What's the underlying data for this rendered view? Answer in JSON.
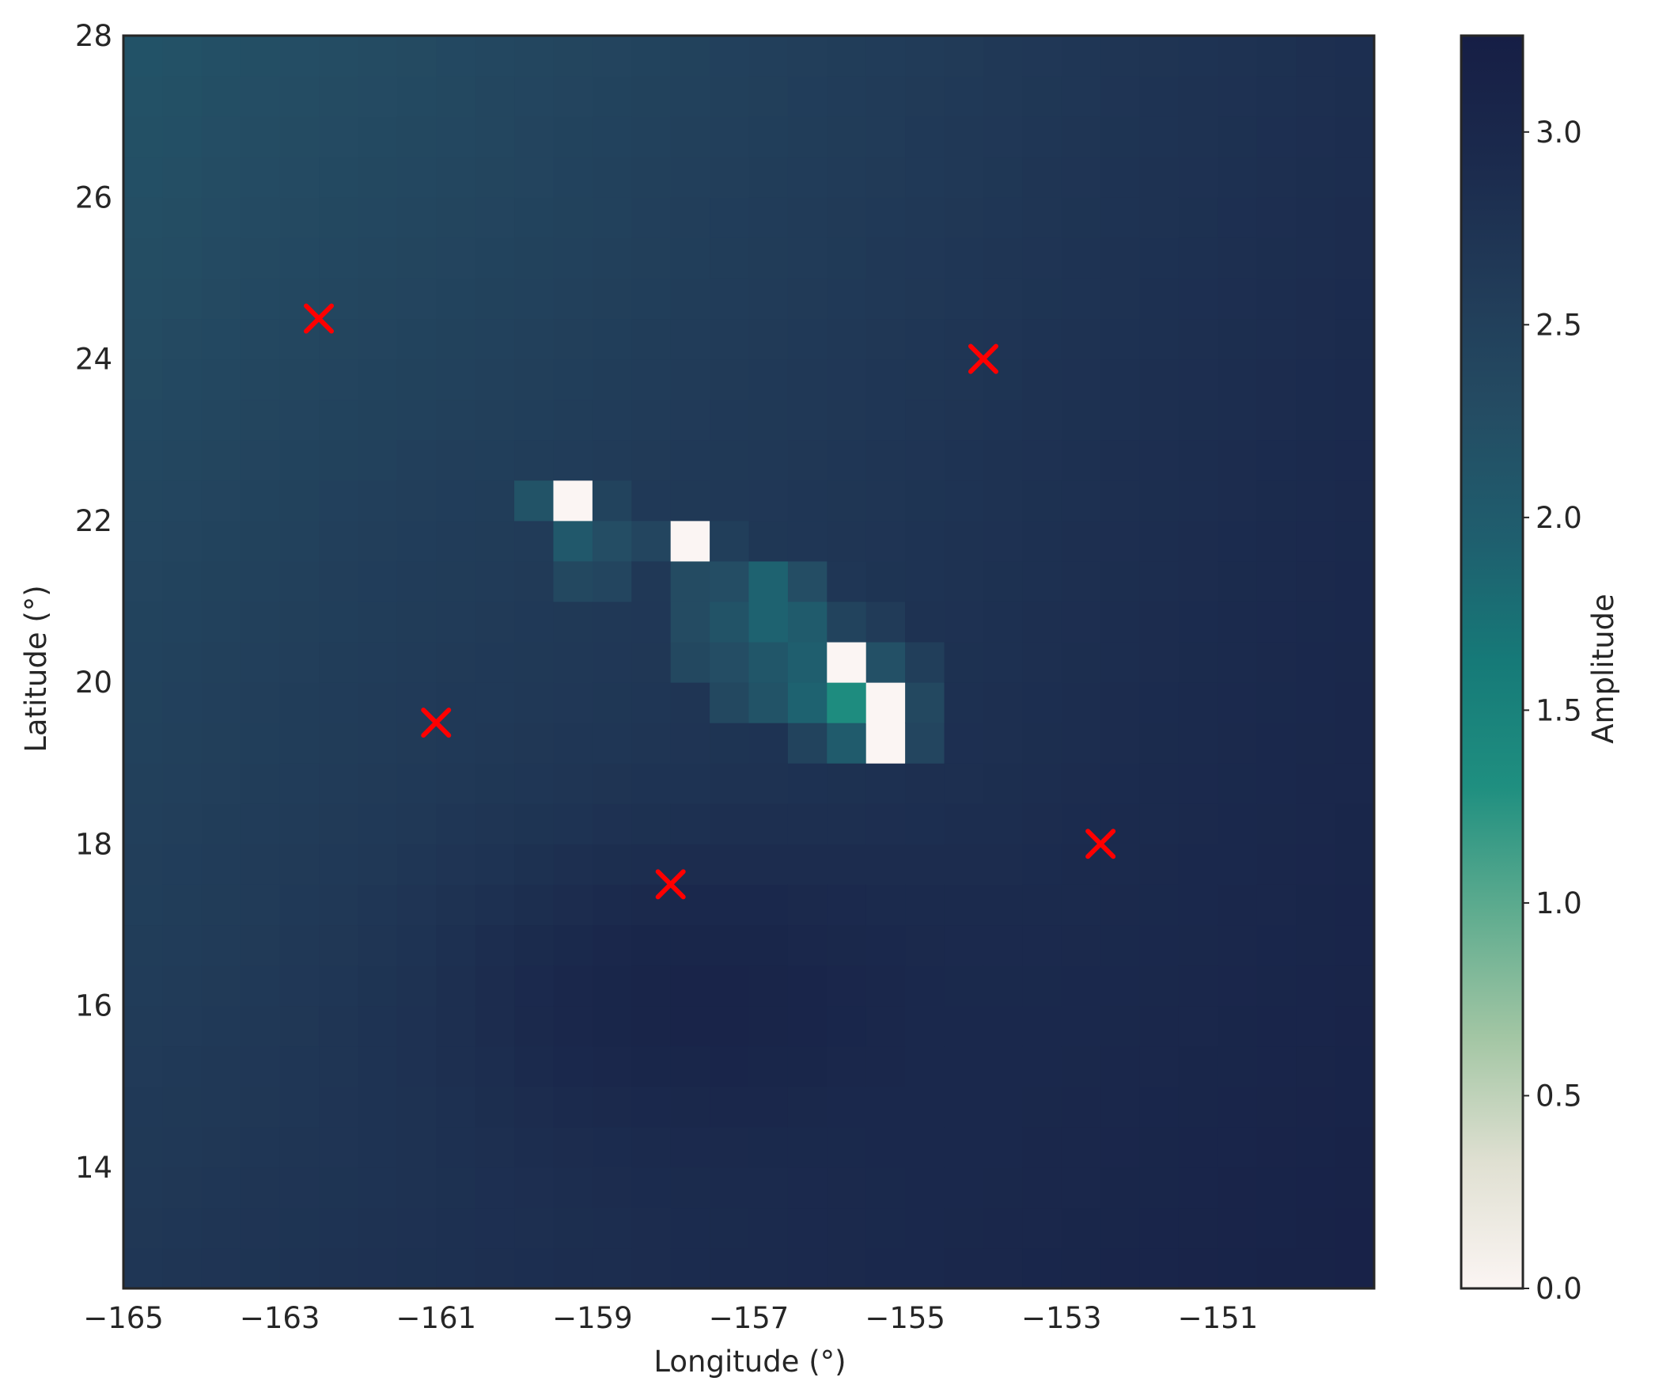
{
  "chart_data": {
    "type": "heatmap",
    "title": "",
    "xlabel": "Longitude (°)",
    "ylabel": "Latitude (°)",
    "xlim": [
      -165,
      -149
    ],
    "ylim": [
      12.5,
      28
    ],
    "xticks": [
      -165,
      -163,
      -161,
      -159,
      -157,
      -155,
      -153,
      -151
    ],
    "yticks": [
      14,
      16,
      18,
      20,
      22,
      24,
      26,
      28
    ],
    "cell_size_deg": 0.5,
    "grid": false,
    "colormap": [
      "#fbf5f3",
      "#e0e0d2",
      "#a3c6a4",
      "#5fac8f",
      "#1f8f80",
      "#167a78",
      "#1f5e6e",
      "#244c63",
      "#213b58",
      "#1b2a4d",
      "#161e45"
    ],
    "colorbar": {
      "label": "Amplitude",
      "range": [
        0,
        3.25
      ],
      "ticks": [
        0.0,
        0.5,
        1.0,
        1.5,
        2.0,
        2.5,
        3.0
      ],
      "tick_labels": [
        "0.0",
        "0.5",
        "1.0",
        "1.5",
        "2.0",
        "2.5",
        "3.0"
      ]
    },
    "base_field": {
      "description_values": "amplitude at corners",
      "top_left": 2.15,
      "top_right": 2.85,
      "bottom_left": 2.7,
      "bottom_right": 3.15,
      "center_band_low": 2.7
    },
    "anomaly_cells": [
      {
        "lon": -160.0,
        "lat": 22.0,
        "value": 2.15
      },
      {
        "lon": -159.5,
        "lat": 22.0,
        "value": 0.0
      },
      {
        "lon": -159.0,
        "lat": 22.0,
        "value": 2.45
      },
      {
        "lon": -159.5,
        "lat": 21.5,
        "value": 2.05
      },
      {
        "lon": -159.0,
        "lat": 21.5,
        "value": 2.25
      },
      {
        "lon": -158.5,
        "lat": 21.5,
        "value": 2.4
      },
      {
        "lon": -158.0,
        "lat": 21.5,
        "value": 0.0
      },
      {
        "lon": -157.5,
        "lat": 21.5,
        "value": 2.55
      },
      {
        "lon": -159.5,
        "lat": 21.0,
        "value": 2.35
      },
      {
        "lon": -159.0,
        "lat": 21.0,
        "value": 2.4
      },
      {
        "lon": -158.0,
        "lat": 21.0,
        "value": 2.3
      },
      {
        "lon": -157.5,
        "lat": 21.0,
        "value": 2.25
      },
      {
        "lon": -157.0,
        "lat": 21.0,
        "value": 1.9
      },
      {
        "lon": -156.5,
        "lat": 21.0,
        "value": 2.25
      },
      {
        "lon": -156.0,
        "lat": 21.0,
        "value": 2.7
      },
      {
        "lon": -158.0,
        "lat": 20.5,
        "value": 2.3
      },
      {
        "lon": -157.5,
        "lat": 20.5,
        "value": 2.15
      },
      {
        "lon": -157.0,
        "lat": 20.5,
        "value": 1.9
      },
      {
        "lon": -156.5,
        "lat": 20.5,
        "value": 2.0
      },
      {
        "lon": -156.0,
        "lat": 20.5,
        "value": 2.45
      },
      {
        "lon": -155.5,
        "lat": 20.5,
        "value": 2.6
      },
      {
        "lon": -158.0,
        "lat": 20.0,
        "value": 2.35
      },
      {
        "lon": -157.5,
        "lat": 20.0,
        "value": 2.25
      },
      {
        "lon": -157.0,
        "lat": 20.0,
        "value": 2.1
      },
      {
        "lon": -156.5,
        "lat": 20.0,
        "value": 1.95
      },
      {
        "lon": -156.0,
        "lat": 20.0,
        "value": 0.0
      },
      {
        "lon": -155.5,
        "lat": 20.0,
        "value": 2.2
      },
      {
        "lon": -155.0,
        "lat": 20.0,
        "value": 2.55
      },
      {
        "lon": -157.5,
        "lat": 19.5,
        "value": 2.35
      },
      {
        "lon": -157.0,
        "lat": 19.5,
        "value": 2.15
      },
      {
        "lon": -156.5,
        "lat": 19.5,
        "value": 1.9
      },
      {
        "lon": -156.0,
        "lat": 19.5,
        "value": 1.35
      },
      {
        "lon": -155.5,
        "lat": 19.5,
        "value": 0.0
      },
      {
        "lon": -155.0,
        "lat": 19.5,
        "value": 2.35
      },
      {
        "lon": -156.5,
        "lat": 19.0,
        "value": 2.45
      },
      {
        "lon": -156.0,
        "lat": 19.0,
        "value": 2.0
      },
      {
        "lon": -155.5,
        "lat": 19.0,
        "value": 0.0
      },
      {
        "lon": -155.0,
        "lat": 19.0,
        "value": 2.4
      }
    ],
    "markers": {
      "style": "x",
      "color": "#ff0000",
      "points": [
        {
          "lon": -162.5,
          "lat": 24.5
        },
        {
          "lon": -154.0,
          "lat": 24.0
        },
        {
          "lon": -161.0,
          "lat": 19.5
        },
        {
          "lon": -158.0,
          "lat": 17.5
        },
        {
          "lon": -152.5,
          "lat": 18.0
        }
      ]
    }
  }
}
